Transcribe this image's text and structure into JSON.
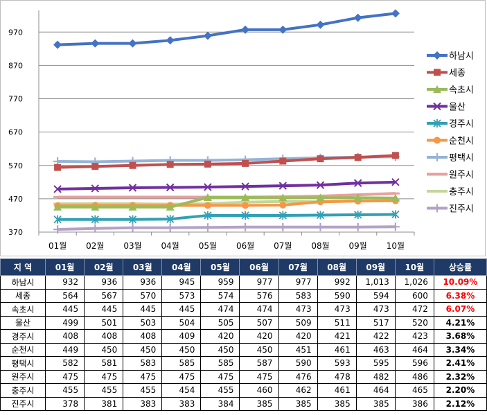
{
  "chart_data": {
    "type": "line",
    "categories": [
      "01월",
      "02월",
      "03월",
      "04월",
      "05월",
      "06월",
      "07월",
      "08월",
      "09월",
      "10월"
    ],
    "yticks": [
      370,
      470,
      570,
      670,
      770,
      870,
      970
    ],
    "ylim": [
      370,
      1035
    ],
    "grid": true,
    "legend_position": "right",
    "series": [
      {
        "name": "하남시",
        "color": "#4472c4",
        "marker": "diamond",
        "values": [
          932,
          936,
          936,
          945,
          959,
          977,
          977,
          992,
          1013,
          1026
        ]
      },
      {
        "name": "세종",
        "color": "#c0504d",
        "marker": "square",
        "values": [
          564,
          567,
          570,
          573,
          574,
          576,
          583,
          590,
          594,
          600
        ]
      },
      {
        "name": "속초시",
        "color": "#9bbb59",
        "marker": "triangle",
        "values": [
          445,
          445,
          445,
          445,
          474,
          474,
          473,
          473,
          473,
          472
        ]
      },
      {
        "name": "울산",
        "color": "#7030a0",
        "marker": "x",
        "values": [
          499,
          501,
          503,
          504,
          505,
          507,
          509,
          511,
          517,
          520
        ]
      },
      {
        "name": "경주시",
        "color": "#31a0b5",
        "marker": "star",
        "values": [
          408,
          408,
          408,
          409,
          420,
          420,
          420,
          421,
          422,
          423
        ]
      },
      {
        "name": "순천시",
        "color": "#f79646",
        "marker": "circle",
        "values": [
          449,
          450,
          450,
          450,
          450,
          450,
          451,
          461,
          463,
          464
        ]
      },
      {
        "name": "평택시",
        "color": "#95b3d7",
        "marker": "plus",
        "values": [
          582,
          581,
          583,
          585,
          585,
          587,
          590,
          593,
          595,
          596
        ]
      },
      {
        "name": "원주시",
        "color": "#e6a09e",
        "marker": "dash",
        "values": [
          475,
          475,
          475,
          475,
          475,
          475,
          476,
          478,
          482,
          486
        ]
      },
      {
        "name": "충주시",
        "color": "#c3d69b",
        "marker": "dash",
        "values": [
          455,
          455,
          455,
          454,
          455,
          460,
          462,
          461,
          464,
          465
        ]
      },
      {
        "name": "진주시",
        "color": "#b3a2c7",
        "marker": "plus",
        "values": [
          378,
          381,
          383,
          383,
          384,
          385,
          385,
          385,
          385,
          386
        ]
      }
    ]
  },
  "table": {
    "headers": [
      "지 역",
      "01월",
      "02월",
      "03월",
      "04월",
      "05월",
      "06월",
      "07월",
      "08월",
      "09월",
      "10월",
      "상승률"
    ],
    "rows": [
      {
        "region": "하남시",
        "values": [
          "932",
          "936",
          "936",
          "945",
          "959",
          "977",
          "977",
          "992",
          "1,013",
          "1,026"
        ],
        "rate": "10.09%",
        "highlight": true
      },
      {
        "region": "세종",
        "values": [
          "564",
          "567",
          "570",
          "573",
          "574",
          "576",
          "583",
          "590",
          "594",
          "600"
        ],
        "rate": "6.38%",
        "highlight": true
      },
      {
        "region": "속초시",
        "values": [
          "445",
          "445",
          "445",
          "445",
          "474",
          "474",
          "473",
          "473",
          "473",
          "472"
        ],
        "rate": "6.07%",
        "highlight": true
      },
      {
        "region": "울산",
        "values": [
          "499",
          "501",
          "503",
          "504",
          "505",
          "507",
          "509",
          "511",
          "517",
          "520"
        ],
        "rate": "4.21%",
        "highlight": false
      },
      {
        "region": "경주시",
        "values": [
          "408",
          "408",
          "408",
          "409",
          "420",
          "420",
          "420",
          "421",
          "422",
          "423"
        ],
        "rate": "3.68%",
        "highlight": false
      },
      {
        "region": "순천시",
        "values": [
          "449",
          "450",
          "450",
          "450",
          "450",
          "450",
          "451",
          "461",
          "463",
          "464"
        ],
        "rate": "3.34%",
        "highlight": false
      },
      {
        "region": "평택시",
        "values": [
          "582",
          "581",
          "583",
          "585",
          "585",
          "587",
          "590",
          "593",
          "595",
          "596"
        ],
        "rate": "2.41%",
        "highlight": false
      },
      {
        "region": "원주시",
        "values": [
          "475",
          "475",
          "475",
          "475",
          "475",
          "475",
          "476",
          "478",
          "482",
          "486"
        ],
        "rate": "2.32%",
        "highlight": false
      },
      {
        "region": "충주시",
        "values": [
          "455",
          "455",
          "455",
          "454",
          "455",
          "460",
          "462",
          "461",
          "464",
          "465"
        ],
        "rate": "2.20%",
        "highlight": false
      },
      {
        "region": "진주시",
        "values": [
          "378",
          "381",
          "383",
          "383",
          "384",
          "385",
          "385",
          "385",
          "385",
          "386"
        ],
        "rate": "2.12%",
        "highlight": false
      }
    ]
  }
}
